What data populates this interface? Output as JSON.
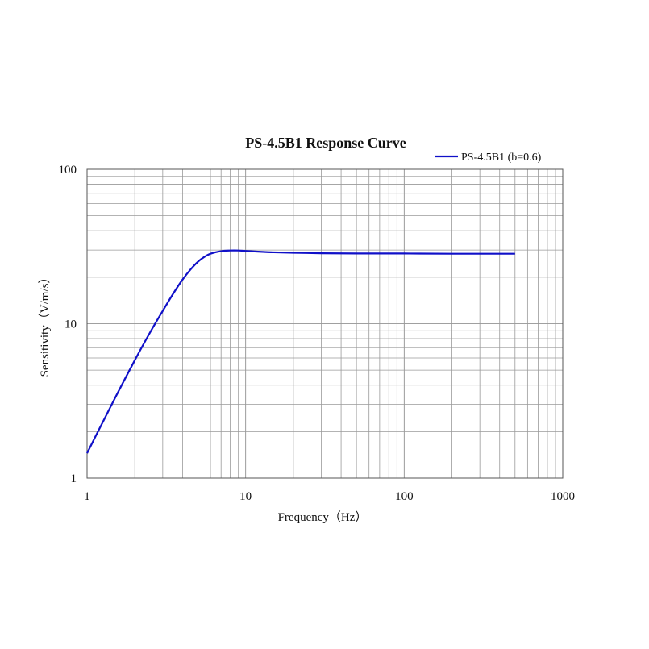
{
  "chart_data": {
    "type": "line",
    "title": "PS-4.5B1 Response Curve",
    "xlabel": "Frequency（Hz）",
    "ylabel": "Sensitivity（V/m/s）",
    "x_scale": "log",
    "y_scale": "log",
    "xlim": [
      1,
      1000
    ],
    "ylim": [
      1,
      100
    ],
    "x_ticks": [
      1,
      10,
      100,
      1000
    ],
    "x_tick_labels": [
      "1",
      "10",
      "100",
      "1000"
    ],
    "y_ticks": [
      1,
      10,
      100
    ],
    "y_tick_labels": [
      "1",
      "10",
      "100"
    ],
    "grid": true,
    "legend_position": "top-right",
    "series": [
      {
        "name": "PS-4.5B1 (b=0.6)",
        "color": "#1010c8",
        "x": [
          1,
          1.2,
          1.5,
          2,
          2.5,
          3,
          3.5,
          4,
          4.5,
          5,
          5.5,
          6,
          7,
          8,
          9,
          10,
          12,
          15,
          20,
          30,
          50,
          100,
          200,
          500
        ],
        "y": [
          1.45,
          2.1,
          3.3,
          5.8,
          8.8,
          12.1,
          15.7,
          19.3,
          22.5,
          25.2,
          27.1,
          28.4,
          29.5,
          29.8,
          29.8,
          29.6,
          29.3,
          29.0,
          28.8,
          28.6,
          28.5,
          28.5,
          28.4,
          28.4
        ]
      }
    ]
  }
}
